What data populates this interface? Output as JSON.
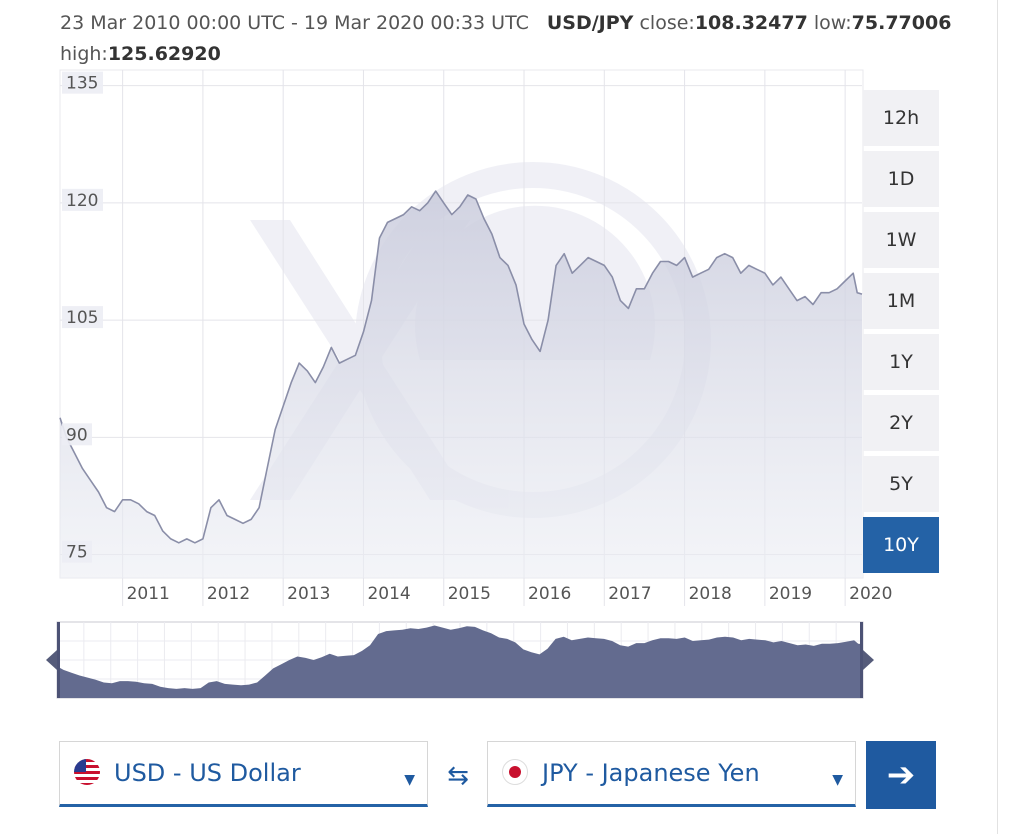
{
  "header": {
    "date_range": "23 Mar 2010 00:00 UTC - 19 Mar 2020 00:33 UTC",
    "pair": "USD/JPY",
    "close_label": "close:",
    "close_value": "108.32477",
    "low_label": "low:",
    "low_value": "75.77006",
    "high_label": "high:",
    "high_value": "125.62920"
  },
  "chart_data": {
    "type": "area",
    "y_ticks": [
      "135",
      "120",
      "105",
      "90",
      "75"
    ],
    "x_ticks": [
      "2011",
      "2012",
      "2013",
      "2014",
      "2015",
      "2016",
      "2017",
      "2018",
      "2019",
      "2020"
    ],
    "ylim": [
      72,
      137
    ],
    "xlim": [
      2010.22,
      2020.21
    ],
    "grid": true,
    "x": [
      2010.22,
      2010.3,
      2010.4,
      2010.5,
      2010.6,
      2010.7,
      2010.8,
      2010.9,
      2011.0,
      2011.1,
      2011.2,
      2011.3,
      2011.4,
      2011.5,
      2011.6,
      2011.7,
      2011.8,
      2011.9,
      2012.0,
      2012.1,
      2012.2,
      2012.3,
      2012.4,
      2012.5,
      2012.6,
      2012.7,
      2012.8,
      2012.9,
      2013.0,
      2013.1,
      2013.2,
      2013.3,
      2013.4,
      2013.5,
      2013.6,
      2013.7,
      2013.8,
      2013.9,
      2014.0,
      2014.1,
      2014.2,
      2014.3,
      2014.4,
      2014.5,
      2014.6,
      2014.7,
      2014.8,
      2014.9,
      2015.0,
      2015.1,
      2015.2,
      2015.3,
      2015.4,
      2015.5,
      2015.6,
      2015.7,
      2015.8,
      2015.9,
      2016.0,
      2016.1,
      2016.2,
      2016.3,
      2016.4,
      2016.5,
      2016.6,
      2016.7,
      2016.8,
      2016.9,
      2017.0,
      2017.1,
      2017.2,
      2017.3,
      2017.4,
      2017.5,
      2017.6,
      2017.7,
      2017.8,
      2017.9,
      2018.0,
      2018.1,
      2018.2,
      2018.3,
      2018.4,
      2018.5,
      2018.6,
      2018.7,
      2018.8,
      2018.9,
      2019.0,
      2019.1,
      2019.2,
      2019.3,
      2019.4,
      2019.5,
      2019.6,
      2019.7,
      2019.8,
      2019.9,
      2020.0,
      2020.1,
      2020.15,
      2020.21
    ],
    "values": [
      92.5,
      90.0,
      88.0,
      86.0,
      84.5,
      83.0,
      81.0,
      80.5,
      82.0,
      82.0,
      81.5,
      80.5,
      80.0,
      78.0,
      77.0,
      76.5,
      77.0,
      76.5,
      77.0,
      81.0,
      82.0,
      80.0,
      79.5,
      79.0,
      79.5,
      81.0,
      86.0,
      91.0,
      94.0,
      97.0,
      99.5,
      98.5,
      97.0,
      99.0,
      101.5,
      99.5,
      100.0,
      100.5,
      103.5,
      107.5,
      115.5,
      117.5,
      118.0,
      118.5,
      119.5,
      119.0,
      120.0,
      121.5,
      120.0,
      118.5,
      119.5,
      121.0,
      120.5,
      118.0,
      116.0,
      113.0,
      112.0,
      109.5,
      104.5,
      102.5,
      101.0,
      105.0,
      112.0,
      113.5,
      111.0,
      112.0,
      113.0,
      112.5,
      112.0,
      110.5,
      107.5,
      106.5,
      109.0,
      109.0,
      111.0,
      112.5,
      112.5,
      112.0,
      113.0,
      110.5,
      111.0,
      111.5,
      113.0,
      113.5,
      113.0,
      111.0,
      112.0,
      111.5,
      111.0,
      109.5,
      110.5,
      109.0,
      107.5,
      108.0,
      107.0,
      108.5,
      108.5,
      109.0,
      110.0,
      111.0,
      108.5,
      108.32
    ]
  },
  "range_buttons": [
    "12h",
    "1D",
    "1W",
    "1M",
    "1Y",
    "2Y",
    "5Y",
    "10Y"
  ],
  "active_range": "10Y",
  "colors": {
    "accent": "#1f5aa0",
    "active_button": "#2462a6",
    "series_line": "#8a8ea8",
    "navigator_fill": "#636b8f"
  },
  "converter": {
    "from_label": "USD - US Dollar",
    "to_label": "JPY - Japanese Yen",
    "swap_icon": "swap-arrows-icon",
    "go_icon": "arrow-right-icon",
    "caret_icon": "caret-down-icon"
  }
}
